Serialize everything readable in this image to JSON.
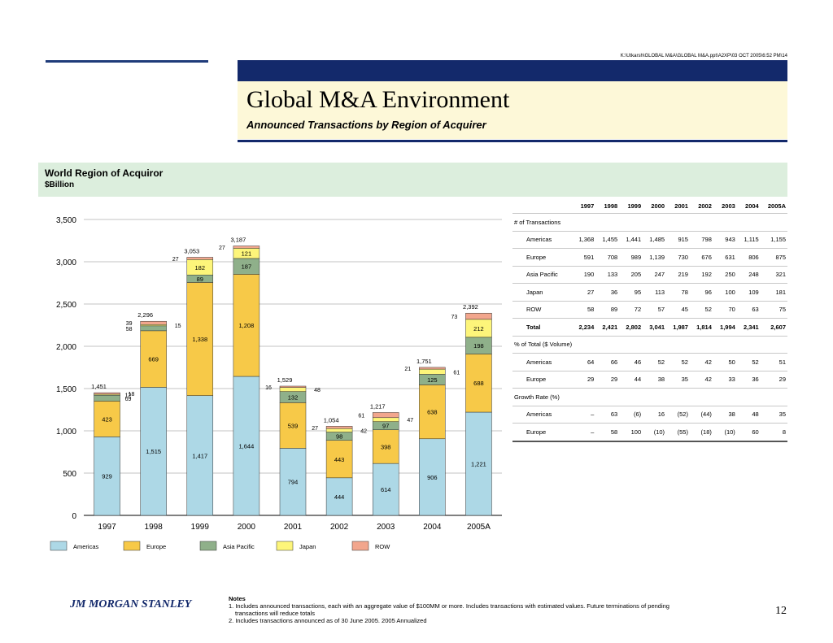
{
  "header": {
    "path": "K:\\Utkarsh\\GLOBAL M&A\\GLOBAL M&A.ppt\\A2XP\\03 OCT 2005\\6:52 PM\\14",
    "title": "Global M&A Environment",
    "subtitle": "Announced Transactions by Region of Acquirer"
  },
  "section": {
    "title": "World Region of Acquiror",
    "unit": "$Billion"
  },
  "colors": {
    "Americas": "#add8e6",
    "Europe": "#f7c948",
    "Asia Pacific": "#8fb08a",
    "Japan": "#fdf57a",
    "ROW": "#f2a68d",
    "nav": "#13296b"
  },
  "chart_data": {
    "type": "bar",
    "stacked": true,
    "categories": [
      "1997",
      "1998",
      "1999",
      "2000",
      "2001",
      "2002",
      "2003",
      "2004",
      "2005A"
    ],
    "ylim": [
      0,
      3500
    ],
    "yticks": [
      "0",
      "500",
      "1,000",
      "1,500",
      "2,000",
      "2,500",
      "3,000",
      "3,500"
    ],
    "grid": true,
    "legend_position": "bottom",
    "series": [
      {
        "name": "Americas",
        "values": [
          929,
          1515,
          1417,
          1644,
          794,
          444,
          614,
          906,
          1221
        ],
        "labels": [
          "929",
          "1,515",
          "1,417",
          "1,644",
          "794",
          "444",
          "614",
          "906",
          "1,221"
        ]
      },
      {
        "name": "Europe",
        "values": [
          423,
          669,
          1338,
          1208,
          539,
          443,
          398,
          638,
          688
        ],
        "labels": [
          "423",
          "669",
          "1,338",
          "1,208",
          "539",
          "443",
          "398",
          "638",
          "688"
        ]
      },
      {
        "name": "Asia Pacific",
        "values": [
          69,
          58,
          89,
          187,
          132,
          98,
          97,
          125,
          198
        ],
        "labels": [
          "69",
          "58",
          "89",
          "187",
          "132",
          "98",
          "97",
          "125",
          "198"
        ]
      },
      {
        "name": "Japan",
        "values": [
          12,
          15,
          182,
          121,
          48,
          42,
          47,
          61,
          212
        ],
        "labels": [
          "12",
          "15",
          "182",
          "121",
          "48",
          "42",
          "47",
          "61",
          "212"
        ]
      },
      {
        "name": "ROW",
        "values": [
          18,
          39,
          27,
          27,
          16,
          27,
          61,
          21,
          73
        ],
        "labels": [
          "18",
          "39",
          "27",
          "27",
          "16",
          "27",
          "61",
          "21",
          "73"
        ]
      }
    ],
    "totals": [
      "1,451",
      "2,296",
      "3,053",
      "3,187",
      "1,529",
      "1,054",
      "1,217",
      "1,751",
      "2,392"
    ]
  },
  "table": {
    "headers": [
      "1997",
      "1998",
      "1999",
      "2000",
      "2001",
      "2002",
      "2003",
      "2004",
      "2005A"
    ],
    "rows": [
      {
        "label": "# of Transactions",
        "section": true,
        "cells": []
      },
      {
        "label": "Americas",
        "cells": [
          "1,368",
          "1,455",
          "1,441",
          "1,485",
          "915",
          "798",
          "943",
          "1,115",
          "1,155"
        ]
      },
      {
        "label": "Europe",
        "cells": [
          "591",
          "708",
          "989",
          "1,139",
          "730",
          "676",
          "631",
          "806",
          "875"
        ]
      },
      {
        "label": "Asia Pacific",
        "cells": [
          "190",
          "133",
          "205",
          "247",
          "219",
          "192",
          "250",
          "248",
          "321"
        ]
      },
      {
        "label": "Japan",
        "cells": [
          "27",
          "36",
          "95",
          "113",
          "78",
          "96",
          "100",
          "109",
          "181"
        ]
      },
      {
        "label": "ROW",
        "cells": [
          "58",
          "89",
          "72",
          "57",
          "45",
          "52",
          "70",
          "63",
          "75"
        ]
      },
      {
        "label": "Total",
        "total": true,
        "cells": [
          "2,234",
          "2,421",
          "2,802",
          "3,041",
          "1,987",
          "1,814",
          "1,994",
          "2,341",
          "2,607"
        ]
      },
      {
        "label": "% of Total ($ Volume)",
        "section": true,
        "cells": []
      },
      {
        "label": "Americas",
        "cells": [
          "64",
          "66",
          "46",
          "52",
          "52",
          "42",
          "50",
          "52",
          "51"
        ]
      },
      {
        "label": "Europe",
        "cells": [
          "29",
          "29",
          "44",
          "38",
          "35",
          "42",
          "33",
          "36",
          "29"
        ]
      },
      {
        "label": "Growth Rate (%)",
        "section": true,
        "cells": []
      },
      {
        "label": "Americas",
        "cells": [
          "–",
          "63",
          "(6)",
          "16",
          "(52)",
          "(44)",
          "38",
          "48",
          "35"
        ]
      },
      {
        "label": "Europe",
        "cells": [
          "–",
          "58",
          "100",
          "(10)",
          "(55)",
          "(18)",
          "(10)",
          "60",
          "8"
        ]
      }
    ]
  },
  "footer": {
    "brand": "JM MORGAN STANLEY",
    "notes_title": "Notes",
    "notes": [
      "1.  Includes announced transactions, each with an aggregate value of $100MM or more. Includes transactions with estimated values. Future terminations of pending transactions will reduce totals",
      "2.  Includes transactions announced as of 30 June 2005. 2005 Annualized"
    ],
    "page": "12"
  }
}
